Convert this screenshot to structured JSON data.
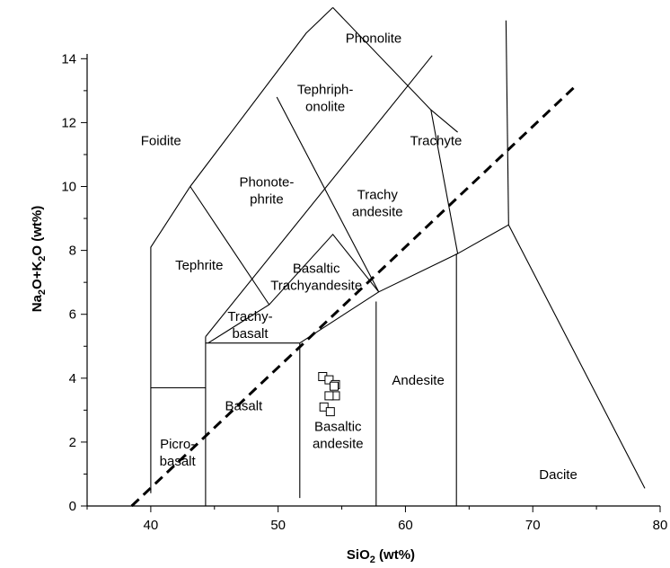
{
  "chart_data": {
    "type": "scatter",
    "title": "",
    "xlabel": {
      "pre": "SiO",
      "sub": "2",
      "post": " (wt%)"
    },
    "ylabel": {
      "parts": [
        [
          "Na",
          ""
        ],
        [
          "2",
          "sub"
        ],
        [
          "O+K",
          ""
        ],
        [
          "2",
          "sub"
        ],
        [
          "O (wt%)",
          ""
        ]
      ]
    },
    "xlim": [
      35,
      80
    ],
    "ylim": [
      0,
      15.5
    ],
    "xticks": [
      40,
      50,
      60,
      70,
      80
    ],
    "yticks": [
      0,
      2,
      4,
      6,
      8,
      10,
      12,
      14
    ],
    "xtick_labels": [
      "40",
      "50",
      "60",
      "70",
      "80"
    ],
    "ytick_labels": [
      "0",
      "2",
      "4",
      "6",
      "8",
      "10",
      "12",
      "14"
    ],
    "grid": false,
    "fields": [
      {
        "name": "foidite",
        "lines": [
          "Foidite"
        ],
        "x": 40.8,
        "y": 11.3
      },
      {
        "name": "phonolite",
        "lines": [
          "Phonolite"
        ],
        "x": 57.5,
        "y": 14.5
      },
      {
        "name": "tephriphonolite",
        "lines": [
          "Tephriph-",
          "onolite"
        ],
        "x": 53.7,
        "y": 12.9
      },
      {
        "name": "trachyte",
        "lines": [
          "Trachyte"
        ],
        "x": 62.4,
        "y": 11.3
      },
      {
        "name": "phonotephrite",
        "lines": [
          "Phonote-",
          "phrite"
        ],
        "x": 49.1,
        "y": 10.0
      },
      {
        "name": "trachyandesite",
        "lines": [
          "Trachy",
          "andesite"
        ],
        "x": 57.8,
        "y": 9.6
      },
      {
        "name": "tephrite",
        "lines": [
          "Tephrite"
        ],
        "x": 43.8,
        "y": 7.4
      },
      {
        "name": "basaltic-trachyandesite",
        "lines": [
          "Basaltic",
          "Trachyandesite"
        ],
        "x": 53.0,
        "y": 7.3
      },
      {
        "name": "trachybasalt",
        "lines": [
          "Trachy-",
          "basalt"
        ],
        "x": 47.8,
        "y": 5.8
      },
      {
        "name": "andesite",
        "lines": [
          "Andesite"
        ],
        "x": 61.0,
        "y": 3.8
      },
      {
        "name": "basalt",
        "lines": [
          "Basalt"
        ],
        "x": 47.3,
        "y": 3.0
      },
      {
        "name": "basaltic-andesite",
        "lines": [
          "Basaltic",
          "andesite"
        ],
        "x": 54.7,
        "y": 2.35
      },
      {
        "name": "picrobasalt",
        "lines": [
          "Picro-",
          "basalt"
        ],
        "x": 42.1,
        "y": 1.8
      },
      {
        "name": "dacite",
        "lines": [
          "Dacite"
        ],
        "x": 72.0,
        "y": 0.85
      }
    ],
    "boundaries": [
      [
        [
          40,
          0.4
        ],
        [
          40,
          8.1
        ],
        [
          43.1,
          10.0
        ],
        [
          52.2,
          14.8
        ],
        [
          54.3,
          15.6
        ]
      ],
      [
        [
          54.3,
          15.6
        ],
        [
          62.0,
          12.4
        ],
        [
          64.1,
          11.7
        ]
      ],
      [
        [
          62.1,
          14.1
        ],
        [
          44.3,
          5.3
        ]
      ],
      [
        [
          49.9,
          12.8
        ],
        [
          57.9,
          6.7
        ]
      ],
      [
        [
          43.1,
          10.0
        ],
        [
          49.3,
          6.3
        ]
      ],
      [
        [
          57.9,
          6.7
        ],
        [
          54.3,
          8.5
        ],
        [
          49.3,
          6.3
        ],
        [
          44.5,
          5.1
        ]
      ],
      [
        [
          62.0,
          12.4
        ],
        [
          64.1,
          7.9
        ]
      ],
      [
        [
          44.3,
          5.3
        ],
        [
          44.3,
          0
        ]
      ],
      [
        [
          40,
          3.7
        ],
        [
          44.3,
          3.7
        ]
      ],
      [
        [
          44.3,
          5.1
        ],
        [
          51.7,
          5.1
        ]
      ],
      [
        [
          51.7,
          5.1
        ],
        [
          51.7,
          0.25
        ]
      ],
      [
        [
          51.7,
          5.1
        ],
        [
          57.9,
          6.7
        ],
        [
          64.1,
          7.9
        ],
        [
          68.1,
          8.8
        ]
      ],
      [
        [
          57.7,
          6.4
        ],
        [
          57.7,
          0
        ]
      ],
      [
        [
          64.0,
          7.9
        ],
        [
          64.0,
          0
        ]
      ],
      [
        [
          67.9,
          15.2
        ],
        [
          68.1,
          8.8
        ]
      ],
      [
        [
          68.1,
          8.8
        ],
        [
          78.8,
          0.55
        ]
      ]
    ],
    "divider": [
      [
        38.5,
        0
      ],
      [
        73.5,
        13.2
      ]
    ],
    "series": [
      {
        "marker": "square",
        "x": [
          53.5,
          54.0,
          54.5,
          54.4,
          54.5,
          54.0,
          53.6,
          54.1
        ],
        "y": [
          4.05,
          3.95,
          3.8,
          3.75,
          3.45,
          3.45,
          3.1,
          2.95
        ]
      }
    ]
  }
}
